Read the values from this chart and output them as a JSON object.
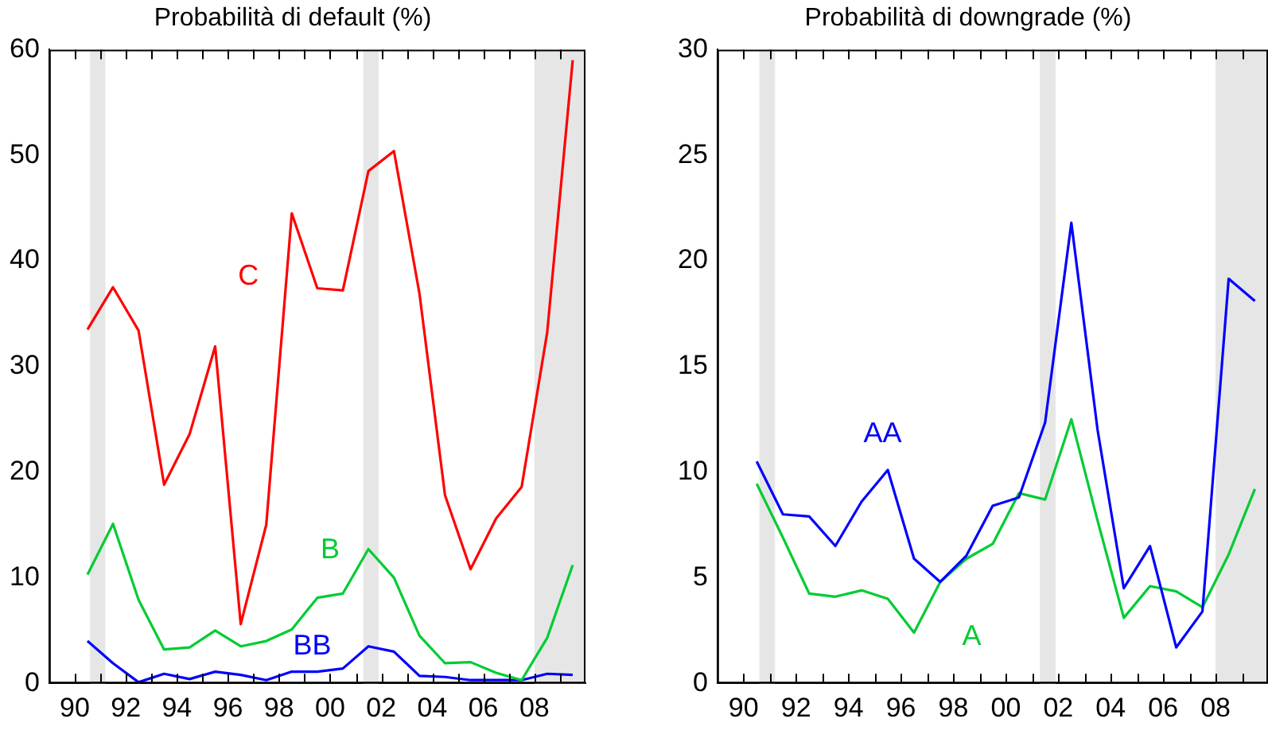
{
  "chart_data": [
    {
      "type": "line",
      "title": "Probabilità di default (%)",
      "x": [
        1990.5,
        1991.5,
        1992.5,
        1993.5,
        1994.5,
        1995.5,
        1996.5,
        1997.5,
        1998.5,
        1999.5,
        2000.5,
        2001.5,
        2002.5,
        2003.5,
        2004.5,
        2005.5,
        2006.5,
        2007.5,
        2008.5,
        2009.5
      ],
      "series": [
        {
          "name": "C",
          "color": "#ff0000",
          "values": [
            33.5,
            37.5,
            33.4,
            18.8,
            23.6,
            31.9,
            5.6,
            15.0,
            44.5,
            37.4,
            37.2,
            48.5,
            50.4,
            36.9,
            17.8,
            10.8,
            15.6,
            18.6,
            33.2,
            59
          ]
        },
        {
          "name": "B",
          "color": "#00cc33",
          "values": [
            10.3,
            15.1,
            7.9,
            3.2,
            3.4,
            5.0,
            3.5,
            4.0,
            5.1,
            8.1,
            8.5,
            12.7,
            10.0,
            4.5,
            1.9,
            2.0,
            1.0,
            0.3,
            4.3,
            11.2
          ]
        },
        {
          "name": "BB",
          "color": "#0000ff",
          "values": [
            4.0,
            1.9,
            0.1,
            0.9,
            0.4,
            1.1,
            0.8,
            0.3,
            1.1,
            1.1,
            1.4,
            3.5,
            3.0,
            0.7,
            0.6,
            0.3,
            0.3,
            0.3,
            0.9,
            0.8
          ]
        }
      ],
      "xlim": [
        1989,
        2010
      ],
      "xticks": [
        {
          "value": 1990,
          "label": "90"
        },
        {
          "value": 1991,
          "label": null
        },
        {
          "value": 1992,
          "label": "92"
        },
        {
          "value": 1993,
          "label": null
        },
        {
          "value": 1994,
          "label": "94"
        },
        {
          "value": 1995,
          "label": null
        },
        {
          "value": 1996,
          "label": "96"
        },
        {
          "value": 1997,
          "label": null
        },
        {
          "value": 1998,
          "label": "98"
        },
        {
          "value": 1999,
          "label": null
        },
        {
          "value": 2000,
          "label": "00"
        },
        {
          "value": 2001,
          "label": null
        },
        {
          "value": 2002,
          "label": "02"
        },
        {
          "value": 2003,
          "label": null
        },
        {
          "value": 2004,
          "label": "04"
        },
        {
          "value": 2005,
          "label": null
        },
        {
          "value": 2006,
          "label": "06"
        },
        {
          "value": 2007,
          "label": null
        },
        {
          "value": 2008,
          "label": "08"
        },
        {
          "value": 2009,
          "label": null
        }
      ],
      "ylim": [
        0,
        60
      ],
      "yticks": [
        0,
        10,
        20,
        30,
        40,
        50,
        60
      ],
      "bands": [
        {
          "axis": "x",
          "from": 1990.6,
          "to": 1991.2,
          "color": "#e6e6e6"
        },
        {
          "axis": "x",
          "from": 2001.3,
          "to": 2001.9,
          "color": "#e6e6e6"
        },
        {
          "axis": "x",
          "from": 2008.0,
          "to": 2010,
          "color": "#e6e6e6"
        }
      ]
    },
    {
      "type": "line",
      "title": "Probabilità di downgrade (%)",
      "x": [
        1990.5,
        1991.5,
        1992.5,
        1993.5,
        1994.5,
        1995.5,
        1996.5,
        1997.5,
        1998.5,
        1999.5,
        2000.5,
        2001.5,
        2002.5,
        2003.5,
        2004.5,
        2005.5,
        2006.5,
        2007.5,
        2008.5,
        2009.5
      ],
      "series": [
        {
          "name": "AA",
          "color": "#0000ff",
          "values": [
            10.5,
            8.0,
            7.9,
            6.5,
            8.6,
            10.1,
            5.9,
            4.8,
            6.05,
            8.4,
            8.8,
            12.35,
            21.8,
            12.0,
            4.5,
            6.5,
            1.7,
            3.4,
            19.15,
            18.1
          ]
        },
        {
          "name": "A",
          "color": "#00cc33",
          "values": [
            9.45,
            6.9,
            4.25,
            4.1,
            4.4,
            4.0,
            2.4,
            4.8,
            5.9,
            6.6,
            9.0,
            8.7,
            12.5,
            7.7,
            3.1,
            4.6,
            4.35,
            3.6,
            6.1,
            9.2
          ]
        }
      ],
      "xlim": [
        1989,
        2010
      ],
      "xticks": [
        {
          "value": 1990,
          "label": "90"
        },
        {
          "value": 1991,
          "label": null
        },
        {
          "value": 1992,
          "label": "92"
        },
        {
          "value": 1993,
          "label": null
        },
        {
          "value": 1994,
          "label": "94"
        },
        {
          "value": 1995,
          "label": null
        },
        {
          "value": 1996,
          "label": "96"
        },
        {
          "value": 1997,
          "label": null
        },
        {
          "value": 1998,
          "label": "98"
        },
        {
          "value": 1999,
          "label": null
        },
        {
          "value": 2000,
          "label": "00"
        },
        {
          "value": 2001,
          "label": null
        },
        {
          "value": 2002,
          "label": "02"
        },
        {
          "value": 2003,
          "label": null
        },
        {
          "value": 2004,
          "label": "04"
        },
        {
          "value": 2005,
          "label": null
        },
        {
          "value": 2006,
          "label": "06"
        },
        {
          "value": 2007,
          "label": null
        },
        {
          "value": 2008,
          "label": "08"
        },
        {
          "value": 2009,
          "label": null
        }
      ],
      "ylim": [
        0,
        30
      ],
      "yticks": [
        0,
        5,
        10,
        15,
        20,
        25,
        30
      ],
      "bands": [
        {
          "axis": "x",
          "from": 1990.6,
          "to": 1991.2,
          "color": "#e6e6e6"
        },
        {
          "axis": "x",
          "from": 2001.3,
          "to": 2001.9,
          "color": "#e6e6e6"
        },
        {
          "axis": "x",
          "from": 2008.0,
          "to": 2010,
          "color": "#e6e6e6"
        }
      ]
    }
  ]
}
